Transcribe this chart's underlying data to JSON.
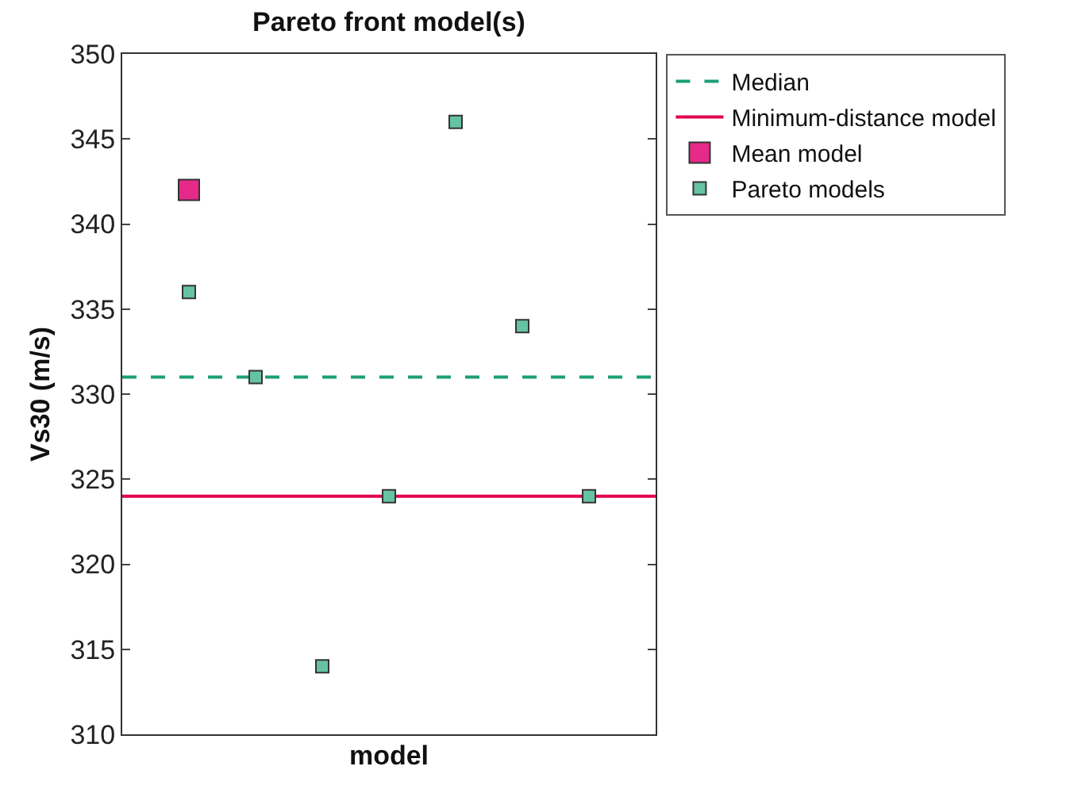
{
  "chart_data": {
    "type": "scatter",
    "title": "Pareto front model(s)",
    "xlabel": "model",
    "ylabel": "Vs30 (m/s)",
    "categories": [
      null,
      null,
      null,
      null,
      null,
      null,
      null
    ],
    "ref_lines": [
      {
        "axis": "y",
        "value": 331,
        "label": "Median",
        "color": "#1b9e77",
        "line_style": "dashed"
      },
      {
        "axis": "y",
        "value": 324,
        "label": "Minimum-distance model",
        "color": "#e0004f",
        "line_style": "solid"
      }
    ],
    "series": [
      {
        "name": "Mean model",
        "color": "#e7298a",
        "values": [
          342,
          null,
          null,
          null,
          null,
          null,
          null
        ]
      },
      {
        "name": "Pareto models",
        "color": "#66c2a5",
        "values": [
          336,
          331,
          314,
          324,
          346,
          334,
          324
        ]
      }
    ],
    "marker": "square",
    "ylim": [
      310,
      350
    ],
    "yticks": [
      310,
      315,
      320,
      325,
      330,
      335,
      340,
      345,
      350
    ],
    "legend": "top right"
  }
}
